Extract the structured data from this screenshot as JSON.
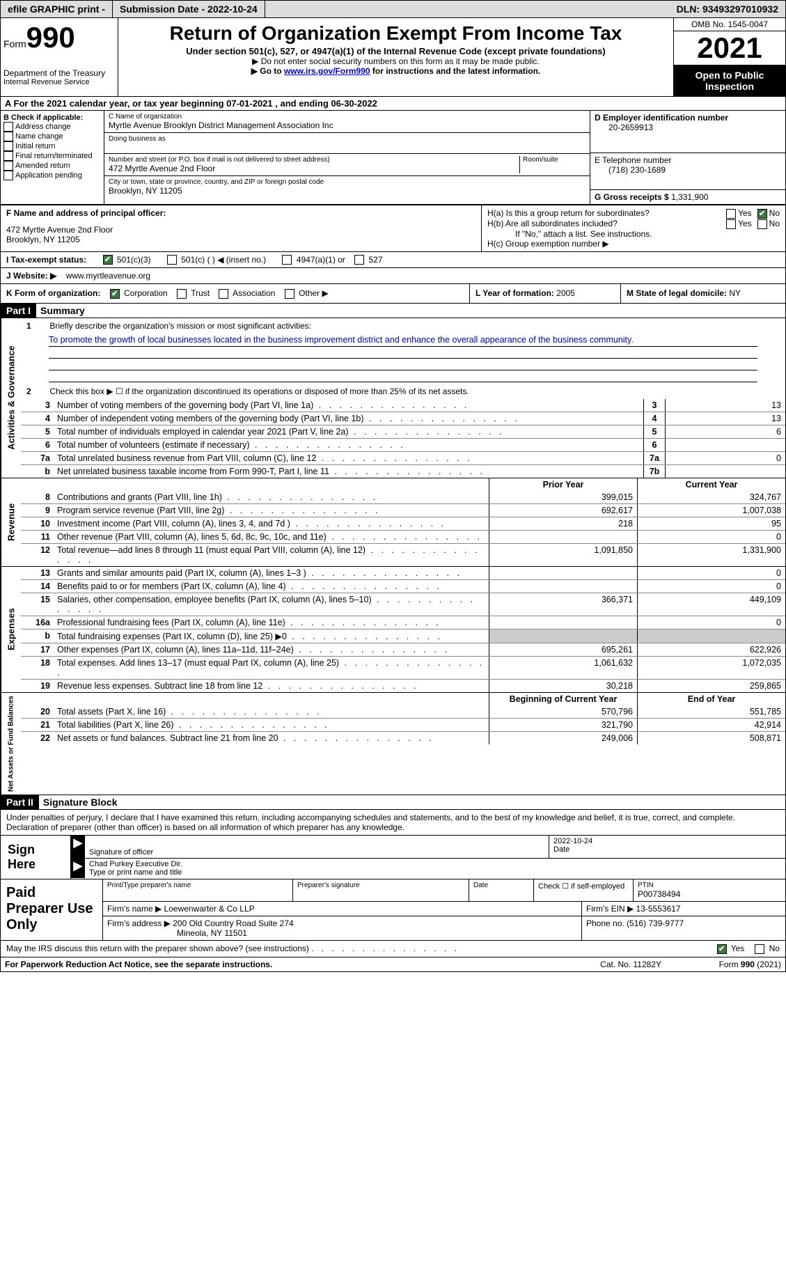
{
  "topbar": {
    "efile": "efile GRAPHIC print -",
    "submission": "Submission Date - 2022-10-24",
    "dln_label": "DLN:",
    "dln": "93493297010932"
  },
  "header": {
    "form_word": "Form",
    "form_num": "990",
    "dept": "Department of the Treasury",
    "irs": "Internal Revenue Service",
    "title": "Return of Organization Exempt From Income Tax",
    "sub1": "Under section 501(c), 527, or 4947(a)(1) of the Internal Revenue Code (except private foundations)",
    "sub2": "▶ Do not enter social security numbers on this form as it may be made public.",
    "sub3a": "▶ Go to ",
    "sub3_link": "www.irs.gov/Form990",
    "sub3b": " for instructions and the latest information.",
    "omb": "OMB No. 1545-0047",
    "year": "2021",
    "open": "Open to Public Inspection"
  },
  "row_a": "A For the 2021 calendar year, or tax year beginning 07-01-2021     , and ending 06-30-2022",
  "col_b": {
    "title": "B Check if applicable:",
    "items": [
      "Address change",
      "Name change",
      "Initial return",
      "Final return/terminated",
      "Amended return",
      "Application pending"
    ]
  },
  "col_c": {
    "name_label": "C Name of organization",
    "name": "Myrtle Avenue Brooklyn District Management Association Inc",
    "dba_label": "Doing business as",
    "addr_label": "Number and street (or P.O. box if mail is not delivered to street address)",
    "room_label": "Room/suite",
    "addr": "472 Myrtle Avenue 2nd Floor",
    "city_label": "City or town, state or province, country, and ZIP or foreign postal code",
    "city": "Brooklyn, NY  11205"
  },
  "col_d": {
    "ein_label": "D Employer identification number",
    "ein": "20-2659913",
    "tel_label": "E Telephone number",
    "tel": "(718) 230-1689",
    "gross_label": "G Gross receipts $",
    "gross": "1,331,900"
  },
  "row_f": {
    "label": "F  Name and address of principal officer:",
    "addr": "472 Myrtle Avenue 2nd Floor\nBrooklyn, NY  11205"
  },
  "row_h": {
    "ha": "H(a)  Is this a group return for subordinates?",
    "hb": "H(b)  Are all subordinates included?",
    "hb_note": "If \"No,\" attach a list. See instructions.",
    "hc": "H(c)  Group exemption number ▶",
    "yes": "Yes",
    "no": "No"
  },
  "row_i": {
    "label": "I    Tax-exempt status:",
    "o1": "501(c)(3)",
    "o2": "501(c) (  ) ◀ (insert no.)",
    "o3": "4947(a)(1) or",
    "o4": "527"
  },
  "row_j": {
    "label": "J   Website: ▶",
    "val": "www.myrtleavenue.org"
  },
  "row_k": {
    "label": "K Form of organization:",
    "o1": "Corporation",
    "o2": "Trust",
    "o3": "Association",
    "o4": "Other ▶"
  },
  "row_l": {
    "label": "L Year of formation:",
    "val": "2005"
  },
  "row_m": {
    "label": "M State of legal domicile:",
    "val": "NY"
  },
  "part1": {
    "header": "Part I",
    "title": "Summary",
    "side_ag": "Activities & Governance",
    "side_rev": "Revenue",
    "side_exp": "Expenses",
    "side_net": "Net Assets or Fund Balances",
    "l1_label": "Briefly describe the organization's mission or most significant activities:",
    "l1_text": "To promote the growth of local businesses located in the business improvement district and enhance the overall appearance of the business community.",
    "l2": "Check this box ▶ ☐ if the organization discontinued its operations or disposed of more than 25% of its net assets.",
    "lines_ag": [
      {
        "n": "3",
        "d": "Number of voting members of the governing body (Part VI, line 1a)",
        "box": "3",
        "v": "13"
      },
      {
        "n": "4",
        "d": "Number of independent voting members of the governing body (Part VI, line 1b)",
        "box": "4",
        "v": "13"
      },
      {
        "n": "5",
        "d": "Total number of individuals employed in calendar year 2021 (Part V, line 2a)",
        "box": "5",
        "v": "6"
      },
      {
        "n": "6",
        "d": "Total number of volunteers (estimate if necessary)",
        "box": "6",
        "v": ""
      },
      {
        "n": "7a",
        "d": "Total unrelated business revenue from Part VIII, column (C), line 12",
        "box": "7a",
        "v": "0"
      },
      {
        "n": "b",
        "d": "Net unrelated business taxable income from Form 990-T, Part I, line 11",
        "box": "7b",
        "v": ""
      }
    ],
    "col_prior": "Prior Year",
    "col_current": "Current Year",
    "lines_rev": [
      {
        "n": "8",
        "d": "Contributions and grants (Part VIII, line 1h)",
        "p": "399,015",
        "c": "324,767"
      },
      {
        "n": "9",
        "d": "Program service revenue (Part VIII, line 2g)",
        "p": "692,617",
        "c": "1,007,038"
      },
      {
        "n": "10",
        "d": "Investment income (Part VIII, column (A), lines 3, 4, and 7d )",
        "p": "218",
        "c": "95"
      },
      {
        "n": "11",
        "d": "Other revenue (Part VIII, column (A), lines 5, 6d, 8c, 9c, 10c, and 11e)",
        "p": "",
        "c": "0"
      },
      {
        "n": "12",
        "d": "Total revenue—add lines 8 through 11 (must equal Part VIII, column (A), line 12)",
        "p": "1,091,850",
        "c": "1,331,900"
      }
    ],
    "lines_exp": [
      {
        "n": "13",
        "d": "Grants and similar amounts paid (Part IX, column (A), lines 1–3 )",
        "p": "",
        "c": "0"
      },
      {
        "n": "14",
        "d": "Benefits paid to or for members (Part IX, column (A), line 4)",
        "p": "",
        "c": "0"
      },
      {
        "n": "15",
        "d": "Salaries, other compensation, employee benefits (Part IX, column (A), lines 5–10)",
        "p": "366,371",
        "c": "449,109"
      },
      {
        "n": "16a",
        "d": "Professional fundraising fees (Part IX, column (A), line 11e)",
        "p": "",
        "c": "0"
      },
      {
        "n": "b",
        "d": "Total fundraising expenses (Part IX, column (D), line 25) ▶0",
        "p": "shaded",
        "c": "shaded"
      },
      {
        "n": "17",
        "d": "Other expenses (Part IX, column (A), lines 11a–11d, 11f–24e)",
        "p": "695,261",
        "c": "622,926"
      },
      {
        "n": "18",
        "d": "Total expenses. Add lines 13–17 (must equal Part IX, column (A), line 25)",
        "p": "1,061,632",
        "c": "1,072,035"
      },
      {
        "n": "19",
        "d": "Revenue less expenses. Subtract line 18 from line 12",
        "p": "30,218",
        "c": "259,865"
      }
    ],
    "col_begin": "Beginning of Current Year",
    "col_end": "End of Year",
    "lines_net": [
      {
        "n": "20",
        "d": "Total assets (Part X, line 16)",
        "p": "570,796",
        "c": "551,785"
      },
      {
        "n": "21",
        "d": "Total liabilities (Part X, line 26)",
        "p": "321,790",
        "c": "42,914"
      },
      {
        "n": "22",
        "d": "Net assets or fund balances. Subtract line 21 from line 20",
        "p": "249,006",
        "c": "508,871"
      }
    ]
  },
  "part2": {
    "header": "Part II",
    "title": "Signature Block",
    "decl": "Under penalties of perjury, I declare that I have examined this return, including accompanying schedules and statements, and to the best of my knowledge and belief, it is true, correct, and complete. Declaration of preparer (other than officer) is based on all information of which preparer has any knowledge.",
    "sign_here": "Sign Here",
    "sig_officer": "Signature of officer",
    "sig_date": "Date",
    "sig_date_val": "2022-10-24",
    "sig_name": "Chad Purkey  Executive Dir.",
    "sig_name_label": "Type or print name and title",
    "paid_prep": "Paid Preparer Use Only",
    "p_name_label": "Print/Type preparer's name",
    "p_sig_label": "Preparer's signature",
    "p_date": "Date",
    "p_check": "Check ☐ if self-employed",
    "ptin_label": "PTIN",
    "ptin": "P00738494",
    "firm_name_label": "Firm's name    ▶",
    "firm_name": "Loewenwarter & Co LLP",
    "firm_ein_label": "Firm's EIN ▶",
    "firm_ein": "13-5553617",
    "firm_addr_label": "Firm's address ▶",
    "firm_addr": "200 Old Country Road Suite 274",
    "firm_city": "Mineola, NY  11501",
    "phone_label": "Phone no.",
    "phone": "(516) 739-9777",
    "may_irs": "May the IRS discuss this return with the preparer shown above? (see instructions)",
    "yes": "Yes",
    "no": "No"
  },
  "footer": {
    "pra": "For Paperwork Reduction Act Notice, see the separate instructions.",
    "cat": "Cat. No. 11282Y",
    "form": "Form 990 (2021)"
  }
}
